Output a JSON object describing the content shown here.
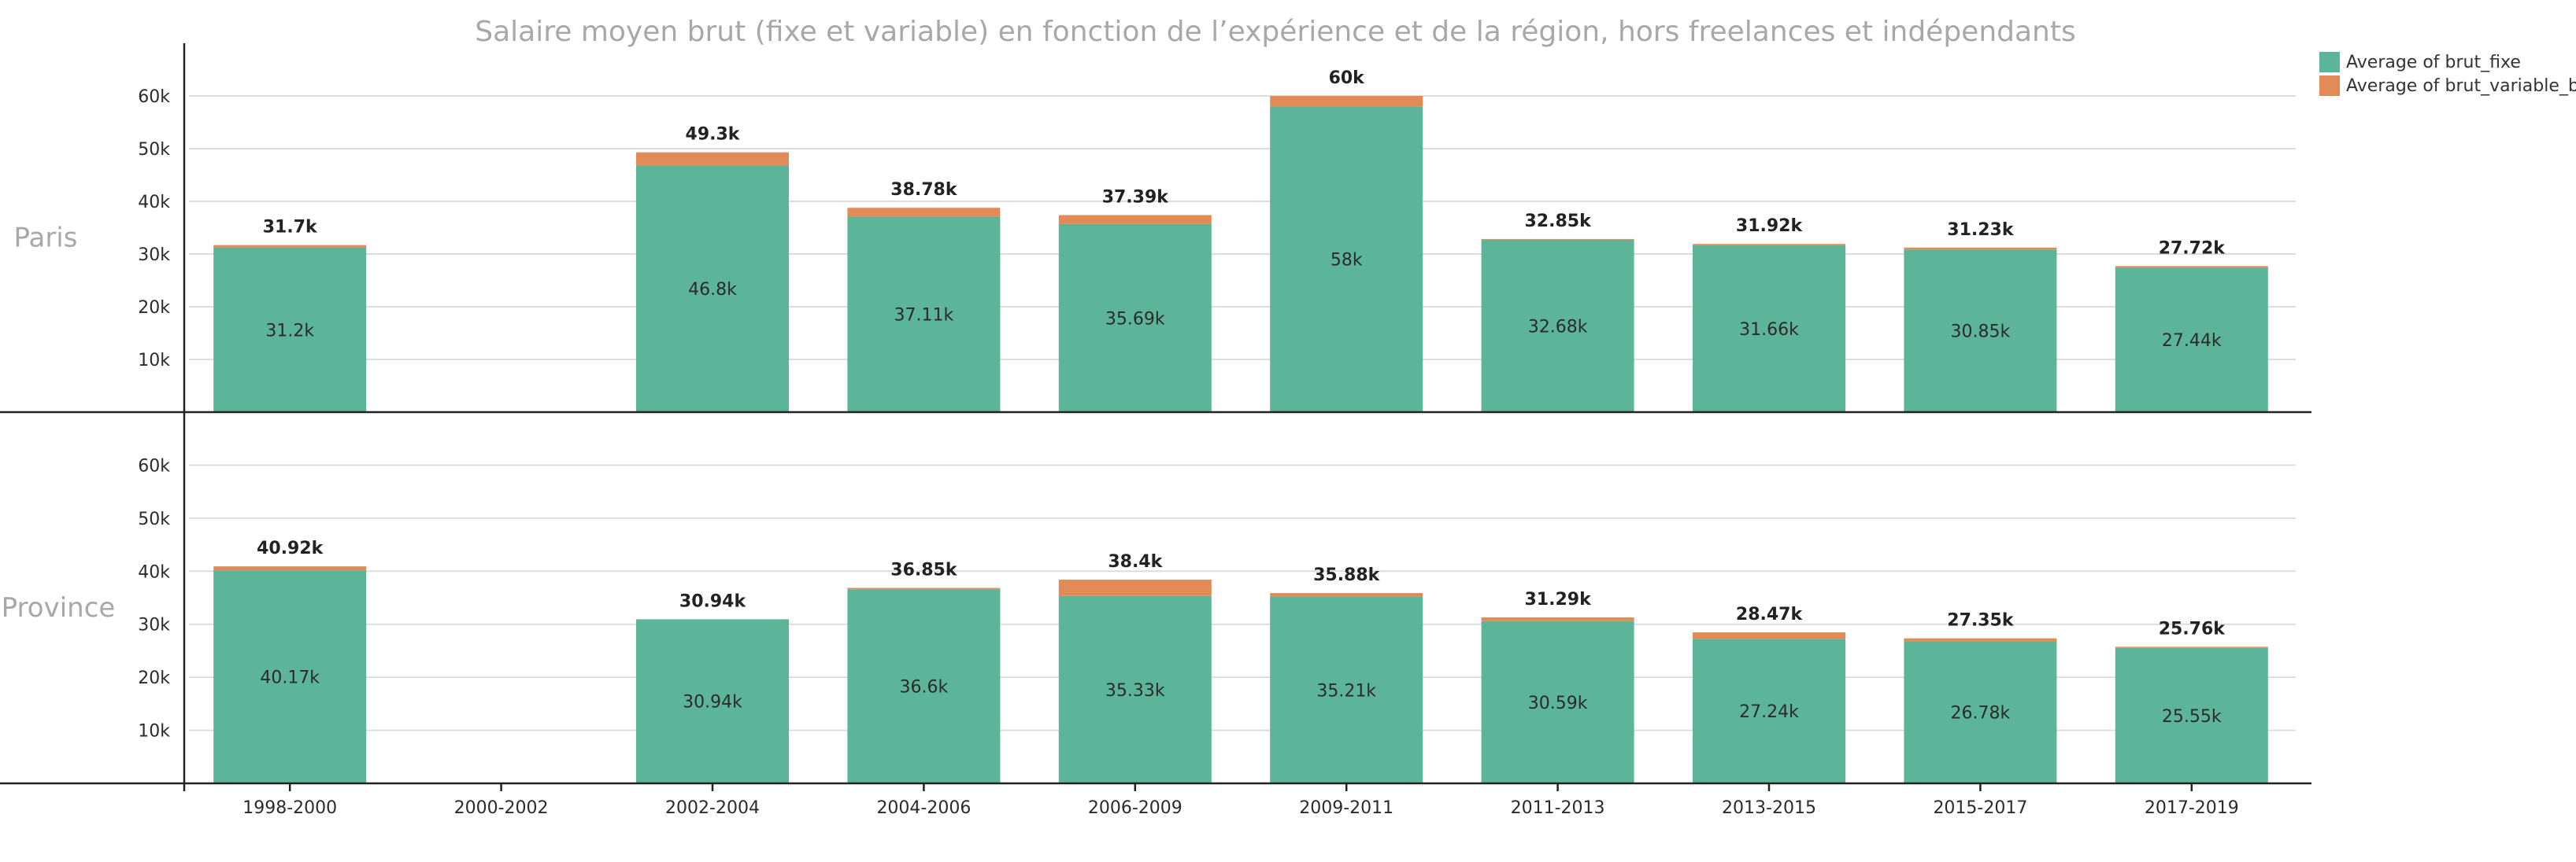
{
  "chart_data": {
    "type": "bar",
    "stacked": true,
    "title": "Salaire moyen brut (fixe et variable) en fonction de l’expérience et de la région, hors freelances et indépendants",
    "categories": [
      "1998-2000",
      "2000-2002",
      "2002-2004",
      "2004-2006",
      "2006-2009",
      "2009-2011",
      "2011-2013",
      "2013-2015",
      "2015-2017",
      "2017-2019"
    ],
    "ylim": [
      0,
      70000
    ],
    "yticks": [
      10000,
      20000,
      30000,
      40000,
      50000,
      60000
    ],
    "ytick_labels": [
      "10k",
      "20k",
      "30k",
      "40k",
      "50k",
      "60k"
    ],
    "grid": true,
    "legend_position": "top-right",
    "series_names": [
      "Average of brut_fixe",
      "Average of brut_variable_bis"
    ],
    "colors": {
      "fixe": "#5cb598",
      "variable": "#e38b57"
    },
    "facets": [
      {
        "row_label": "Paris",
        "fixe": [
          31200,
          null,
          46800,
          37110,
          35690,
          58000,
          32680,
          31660,
          30850,
          27440
        ],
        "total": [
          31700,
          null,
          49300,
          38780,
          37390,
          60000,
          32850,
          31920,
          31230,
          27720
        ],
        "fixe_labels": [
          "31.2k",
          "",
          "46.8k",
          "37.11k",
          "35.69k",
          "58k",
          "32.68k",
          "31.66k",
          "30.85k",
          "27.44k"
        ],
        "total_labels": [
          "31.7k",
          "",
          "49.3k",
          "38.78k",
          "37.39k",
          "60k",
          "32.85k",
          "31.92k",
          "31.23k",
          "27.72k"
        ]
      },
      {
        "row_label": "Province",
        "fixe": [
          40170,
          null,
          30940,
          36600,
          35330,
          35210,
          30590,
          27240,
          26780,
          25550
        ],
        "total": [
          40920,
          null,
          30940,
          36850,
          38400,
          35880,
          31290,
          28470,
          27350,
          25760
        ],
        "fixe_labels": [
          "40.17k",
          "",
          "30.94k",
          "36.6k",
          "35.33k",
          "35.21k",
          "30.59k",
          "27.24k",
          "26.78k",
          "25.55k"
        ],
        "total_labels": [
          "40.92k",
          "",
          "30.94k",
          "36.85k",
          "38.4k",
          "35.88k",
          "31.29k",
          "28.47k",
          "27.35k",
          "25.76k"
        ]
      }
    ]
  }
}
